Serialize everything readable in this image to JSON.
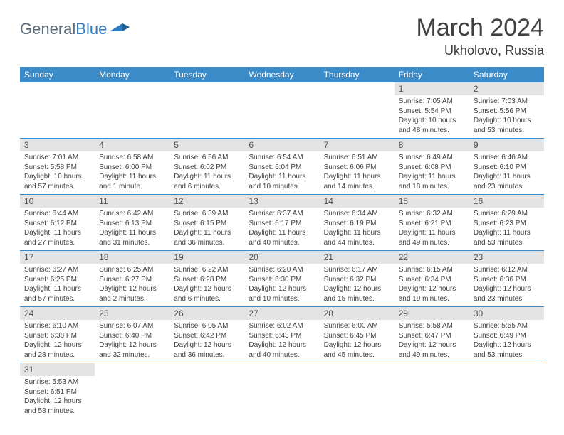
{
  "logo": {
    "part1": "General",
    "part2": "Blue"
  },
  "title": "March 2024",
  "location": "Ukholovo, Russia",
  "colors": {
    "header_bg": "#3b8bc9",
    "header_text": "#ffffff",
    "daynum_bg": "#e4e4e4",
    "row_border": "#3b8bc9",
    "logo_gray": "#5a6a78",
    "logo_blue": "#2f7bbf"
  },
  "weekdays": [
    "Sunday",
    "Monday",
    "Tuesday",
    "Wednesday",
    "Thursday",
    "Friday",
    "Saturday"
  ],
  "weeks": [
    [
      null,
      null,
      null,
      null,
      null,
      {
        "n": "1",
        "sunrise": "7:05 AM",
        "sunset": "5:54 PM",
        "daylight": "10 hours and 48 minutes."
      },
      {
        "n": "2",
        "sunrise": "7:03 AM",
        "sunset": "5:56 PM",
        "daylight": "10 hours and 53 minutes."
      }
    ],
    [
      {
        "n": "3",
        "sunrise": "7:01 AM",
        "sunset": "5:58 PM",
        "daylight": "10 hours and 57 minutes."
      },
      {
        "n": "4",
        "sunrise": "6:58 AM",
        "sunset": "6:00 PM",
        "daylight": "11 hours and 1 minute."
      },
      {
        "n": "5",
        "sunrise": "6:56 AM",
        "sunset": "6:02 PM",
        "daylight": "11 hours and 6 minutes."
      },
      {
        "n": "6",
        "sunrise": "6:54 AM",
        "sunset": "6:04 PM",
        "daylight": "11 hours and 10 minutes."
      },
      {
        "n": "7",
        "sunrise": "6:51 AM",
        "sunset": "6:06 PM",
        "daylight": "11 hours and 14 minutes."
      },
      {
        "n": "8",
        "sunrise": "6:49 AM",
        "sunset": "6:08 PM",
        "daylight": "11 hours and 18 minutes."
      },
      {
        "n": "9",
        "sunrise": "6:46 AM",
        "sunset": "6:10 PM",
        "daylight": "11 hours and 23 minutes."
      }
    ],
    [
      {
        "n": "10",
        "sunrise": "6:44 AM",
        "sunset": "6:12 PM",
        "daylight": "11 hours and 27 minutes."
      },
      {
        "n": "11",
        "sunrise": "6:42 AM",
        "sunset": "6:13 PM",
        "daylight": "11 hours and 31 minutes."
      },
      {
        "n": "12",
        "sunrise": "6:39 AM",
        "sunset": "6:15 PM",
        "daylight": "11 hours and 36 minutes."
      },
      {
        "n": "13",
        "sunrise": "6:37 AM",
        "sunset": "6:17 PM",
        "daylight": "11 hours and 40 minutes."
      },
      {
        "n": "14",
        "sunrise": "6:34 AM",
        "sunset": "6:19 PM",
        "daylight": "11 hours and 44 minutes."
      },
      {
        "n": "15",
        "sunrise": "6:32 AM",
        "sunset": "6:21 PM",
        "daylight": "11 hours and 49 minutes."
      },
      {
        "n": "16",
        "sunrise": "6:29 AM",
        "sunset": "6:23 PM",
        "daylight": "11 hours and 53 minutes."
      }
    ],
    [
      {
        "n": "17",
        "sunrise": "6:27 AM",
        "sunset": "6:25 PM",
        "daylight": "11 hours and 57 minutes."
      },
      {
        "n": "18",
        "sunrise": "6:25 AM",
        "sunset": "6:27 PM",
        "daylight": "12 hours and 2 minutes."
      },
      {
        "n": "19",
        "sunrise": "6:22 AM",
        "sunset": "6:28 PM",
        "daylight": "12 hours and 6 minutes."
      },
      {
        "n": "20",
        "sunrise": "6:20 AM",
        "sunset": "6:30 PM",
        "daylight": "12 hours and 10 minutes."
      },
      {
        "n": "21",
        "sunrise": "6:17 AM",
        "sunset": "6:32 PM",
        "daylight": "12 hours and 15 minutes."
      },
      {
        "n": "22",
        "sunrise": "6:15 AM",
        "sunset": "6:34 PM",
        "daylight": "12 hours and 19 minutes."
      },
      {
        "n": "23",
        "sunrise": "6:12 AM",
        "sunset": "6:36 PM",
        "daylight": "12 hours and 23 minutes."
      }
    ],
    [
      {
        "n": "24",
        "sunrise": "6:10 AM",
        "sunset": "6:38 PM",
        "daylight": "12 hours and 28 minutes."
      },
      {
        "n": "25",
        "sunrise": "6:07 AM",
        "sunset": "6:40 PM",
        "daylight": "12 hours and 32 minutes."
      },
      {
        "n": "26",
        "sunrise": "6:05 AM",
        "sunset": "6:42 PM",
        "daylight": "12 hours and 36 minutes."
      },
      {
        "n": "27",
        "sunrise": "6:02 AM",
        "sunset": "6:43 PM",
        "daylight": "12 hours and 40 minutes."
      },
      {
        "n": "28",
        "sunrise": "6:00 AM",
        "sunset": "6:45 PM",
        "daylight": "12 hours and 45 minutes."
      },
      {
        "n": "29",
        "sunrise": "5:58 AM",
        "sunset": "6:47 PM",
        "daylight": "12 hours and 49 minutes."
      },
      {
        "n": "30",
        "sunrise": "5:55 AM",
        "sunset": "6:49 PM",
        "daylight": "12 hours and 53 minutes."
      }
    ],
    [
      {
        "n": "31",
        "sunrise": "5:53 AM",
        "sunset": "6:51 PM",
        "daylight": "12 hours and 58 minutes."
      },
      null,
      null,
      null,
      null,
      null,
      null
    ]
  ],
  "labels": {
    "sunrise": "Sunrise:",
    "sunset": "Sunset:",
    "daylight": "Daylight:"
  }
}
